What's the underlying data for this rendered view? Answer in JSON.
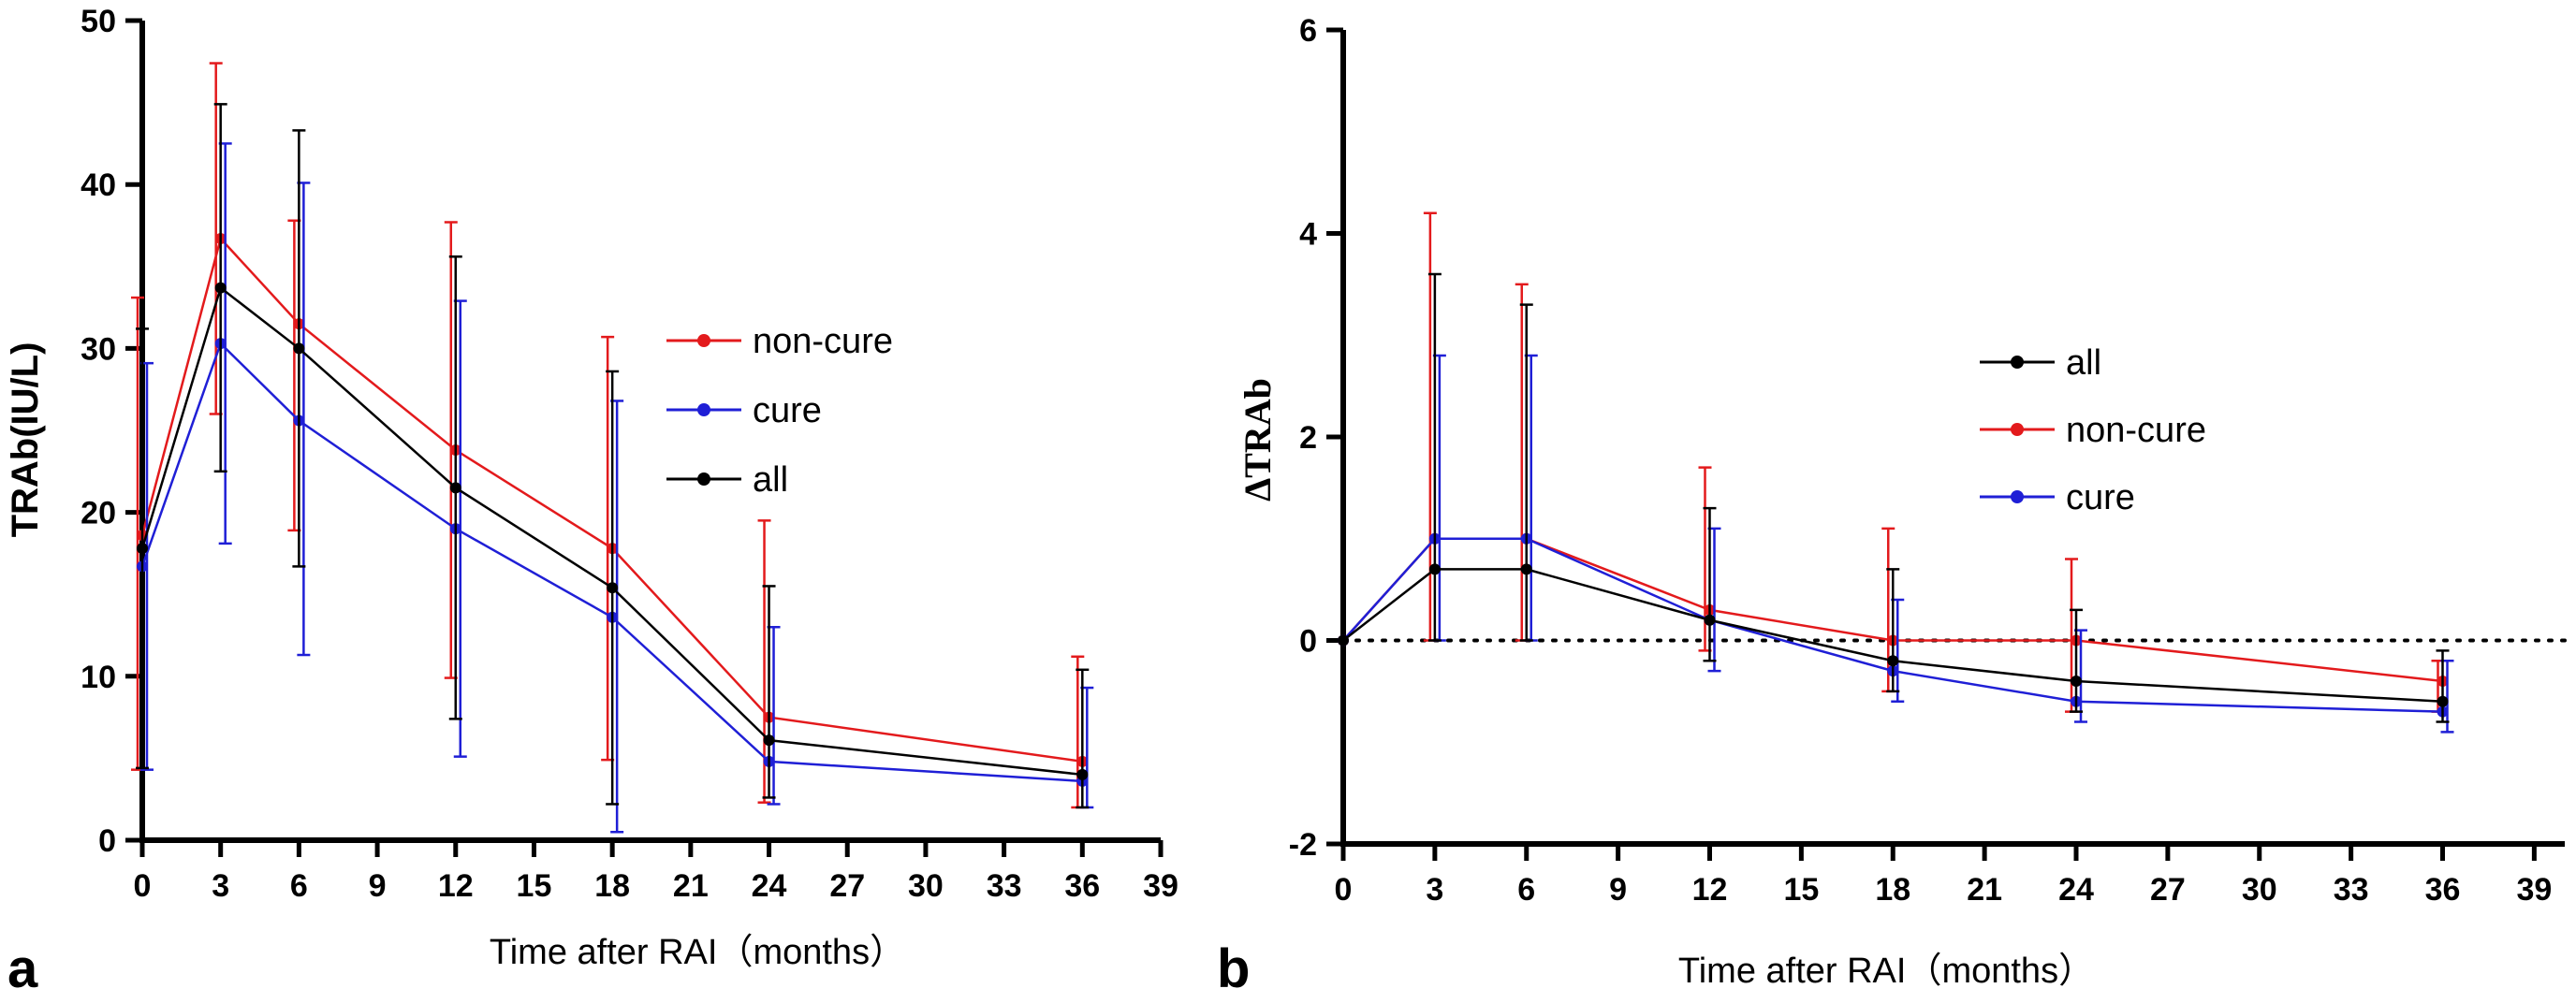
{
  "chart_data": [
    {
      "panel": "a",
      "type": "line",
      "xlabel": "Time after RAI（months）",
      "ylabel": "TRAb(IU/L)",
      "xlim": [
        0,
        39
      ],
      "ylim": [
        0,
        50
      ],
      "x_ticks": [
        0,
        3,
        6,
        9,
        12,
        15,
        18,
        21,
        24,
        27,
        30,
        33,
        36,
        39
      ],
      "y_ticks": [
        0,
        10,
        20,
        30,
        40,
        50
      ],
      "legend_position": "center-right",
      "legend_order": [
        "non-cure",
        "cure",
        "all"
      ],
      "series": [
        {
          "name": "non-cure",
          "color": "#e31a1c",
          "x": [
            0,
            3,
            6,
            12,
            18,
            24,
            36
          ],
          "y": [
            18.6,
            36.7,
            31.5,
            23.8,
            17.8,
            7.5,
            4.8
          ],
          "err_low": [
            4.3,
            26.0,
            18.9,
            9.9,
            4.9,
            2.3,
            2.0
          ],
          "err_high": [
            33.1,
            47.4,
            37.8,
            37.7,
            30.7,
            19.5,
            11.2
          ]
        },
        {
          "name": "cure",
          "color": "#1f1fd6",
          "x": [
            0,
            3,
            6,
            12,
            18,
            24,
            36
          ],
          "y": [
            16.7,
            30.3,
            25.6,
            19.0,
            13.6,
            4.8,
            3.6
          ],
          "err_low": [
            4.3,
            18.1,
            11.3,
            5.1,
            0.5,
            2.2,
            2.0
          ],
          "err_high": [
            29.1,
            42.5,
            40.1,
            32.9,
            26.8,
            13.0,
            9.3
          ]
        },
        {
          "name": "all",
          "color": "#000000",
          "x": [
            0,
            3,
            6,
            12,
            18,
            24,
            36
          ],
          "y": [
            17.8,
            33.7,
            30.0,
            21.5,
            15.4,
            6.1,
            4.0
          ],
          "err_low": [
            4.4,
            22.5,
            16.7,
            7.4,
            2.2,
            2.6,
            2.0
          ],
          "err_high": [
            31.2,
            44.9,
            43.3,
            35.6,
            28.6,
            15.5,
            10.4
          ]
        }
      ]
    },
    {
      "panel": "b",
      "type": "line",
      "xlabel": "Time after RAI（months）",
      "ylabel": "ΔTRAb",
      "xlim": [
        0,
        40
      ],
      "ylim": [
        -2,
        6
      ],
      "x_ticks": [
        0,
        3,
        6,
        9,
        12,
        15,
        18,
        21,
        24,
        27,
        30,
        33,
        36,
        39
      ],
      "y_ticks": [
        -2,
        0,
        2,
        4,
        6
      ],
      "reference_line": {
        "y": 0,
        "style": "dotted"
      },
      "legend_position": "center-right",
      "legend_order": [
        "all",
        "non-cure",
        "cure"
      ],
      "series": [
        {
          "name": "non-cure",
          "color": "#e31a1c",
          "x": [
            0,
            3,
            6,
            12,
            18,
            24,
            36
          ],
          "y": [
            0,
            1.0,
            1.0,
            0.3,
            0.0,
            0.0,
            -0.4
          ],
          "err_low": [
            0,
            0.0,
            0.0,
            -0.1,
            -0.5,
            -0.7,
            -0.7
          ],
          "err_high": [
            0,
            4.2,
            3.5,
            1.7,
            1.1,
            0.8,
            -0.2
          ]
        },
        {
          "name": "cure",
          "color": "#1f1fd6",
          "x": [
            0,
            3,
            6,
            12,
            18,
            24,
            36
          ],
          "y": [
            0,
            1.0,
            1.0,
            0.2,
            -0.3,
            -0.6,
            -0.7
          ],
          "err_low": [
            0,
            0.0,
            0.0,
            -0.3,
            -0.6,
            -0.8,
            -0.9
          ],
          "err_high": [
            0,
            2.8,
            2.8,
            1.1,
            0.4,
            0.1,
            -0.2
          ]
        },
        {
          "name": "all",
          "color": "#000000",
          "x": [
            0,
            3,
            6,
            12,
            18,
            24,
            36
          ],
          "y": [
            0,
            0.7,
            0.7,
            0.2,
            -0.2,
            -0.4,
            -0.6
          ],
          "err_low": [
            0,
            0.0,
            0.0,
            -0.2,
            -0.5,
            -0.7,
            -0.8
          ],
          "err_high": [
            0,
            3.6,
            3.3,
            1.3,
            0.7,
            0.3,
            -0.1
          ]
        }
      ]
    }
  ]
}
